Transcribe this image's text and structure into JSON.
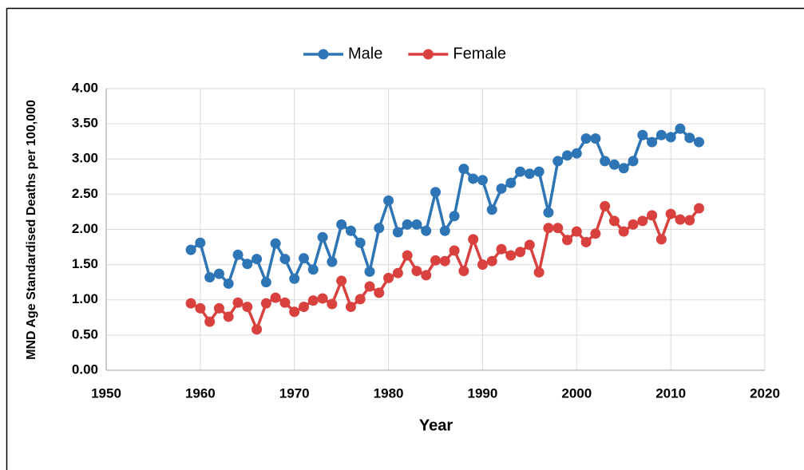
{
  "chart_data": {
    "type": "line",
    "x_label": "Year",
    "y_label": "MND Age Standardised Deaths per 100,000",
    "x": [
      1959,
      1960,
      1961,
      1962,
      1963,
      1964,
      1965,
      1966,
      1967,
      1968,
      1969,
      1970,
      1971,
      1972,
      1973,
      1974,
      1975,
      1976,
      1977,
      1978,
      1979,
      1980,
      1981,
      1982,
      1983,
      1984,
      1985,
      1986,
      1987,
      1988,
      1989,
      1990,
      1991,
      1992,
      1993,
      1994,
      1995,
      1996,
      1997,
      1998,
      1999,
      2000,
      2001,
      2002,
      2003,
      2004,
      2005,
      2006,
      2007,
      2008,
      2009,
      2010,
      2011,
      2012,
      2013
    ],
    "series": [
      {
        "name": "Male",
        "color": "#2e75b6",
        "values": [
          1.71,
          1.81,
          1.32,
          1.37,
          1.23,
          1.64,
          1.51,
          1.58,
          1.25,
          1.8,
          1.58,
          1.3,
          1.59,
          1.43,
          1.89,
          1.54,
          2.07,
          1.98,
          1.81,
          1.4,
          2.02,
          2.41,
          1.96,
          2.07,
          2.07,
          1.98,
          2.53,
          1.98,
          2.19,
          2.86,
          2.72,
          2.7,
          2.28,
          2.58,
          2.66,
          2.82,
          2.79,
          2.82,
          2.24,
          2.97,
          3.05,
          3.08,
          3.29,
          3.29,
          2.97,
          2.92,
          2.87,
          2.97,
          3.34,
          3.24,
          3.34,
          3.31,
          3.43,
          3.3,
          3.24
        ]
      },
      {
        "name": "Female",
        "color": "#d9413e",
        "values": [
          0.95,
          0.88,
          0.69,
          0.88,
          0.76,
          0.96,
          0.9,
          0.58,
          0.95,
          1.03,
          0.96,
          0.83,
          0.9,
          0.99,
          1.02,
          0.94,
          1.27,
          0.9,
          1.01,
          1.19,
          1.1,
          1.31,
          1.38,
          1.63,
          1.41,
          1.35,
          1.56,
          1.55,
          1.7,
          1.41,
          1.86,
          1.5,
          1.55,
          1.72,
          1.63,
          1.68,
          1.78,
          1.39,
          2.02,
          2.02,
          1.85,
          1.97,
          1.82,
          1.94,
          2.33,
          2.12,
          1.97,
          2.07,
          2.12,
          2.2,
          1.86,
          2.22,
          2.14,
          2.13,
          2.3
        ]
      }
    ],
    "xlim": [
      1950,
      2020
    ],
    "xticks": [
      1950,
      1960,
      1970,
      1980,
      1990,
      2000,
      2010,
      2020
    ],
    "ylim": [
      0,
      4
    ],
    "yticks": [
      {
        "value": 0,
        "label": "0.00"
      },
      {
        "value": 0.5,
        "label": "0.50"
      },
      {
        "value": 1,
        "label": "1.00"
      },
      {
        "value": 1.5,
        "label": "1.50"
      },
      {
        "value": 2,
        "label": "2.00"
      },
      {
        "value": 2.5,
        "label": "2.50"
      },
      {
        "value": 3,
        "label": "3.00"
      },
      {
        "value": 3.5,
        "label": "3.50"
      },
      {
        "value": 4,
        "label": "4.00"
      }
    ],
    "grid": true,
    "legend": "top"
  }
}
